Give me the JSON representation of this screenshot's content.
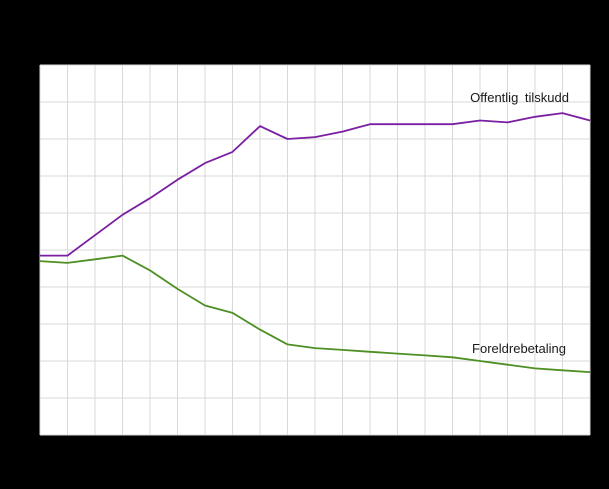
{
  "labels": {
    "series1": "Offentlig tilskudd",
    "series2": "Foreldrebetaling"
  },
  "colors": {
    "background": "#000000",
    "plot_background": "#ffffff",
    "gridline": "#d9d9d9",
    "series1": "#7a1fa2",
    "series2": "#4e8f23"
  },
  "chart_data": {
    "type": "line",
    "x": [
      0,
      1,
      2,
      3,
      4,
      5,
      6,
      7,
      8,
      9,
      10,
      11,
      12,
      13,
      14,
      15,
      16,
      17,
      18,
      19,
      20
    ],
    "series": [
      {
        "name": "Offentlig tilskudd",
        "color": "#7a1fa2",
        "values": [
          48.5,
          48.5,
          54,
          59.5,
          64,
          69,
          73.5,
          76.5,
          83.5,
          80,
          80.5,
          82,
          84,
          84,
          84,
          84,
          85,
          84.5,
          86,
          87,
          85
        ]
      },
      {
        "name": "Foreldrebetaling",
        "color": "#4e8f23",
        "values": [
          47,
          46.5,
          47.5,
          48.5,
          44.5,
          39.5,
          35,
          33,
          28.5,
          24.5,
          23.5,
          23,
          22.5,
          22,
          21.5,
          21,
          20,
          19,
          18,
          17.5,
          17
        ]
      }
    ],
    "ylim": [
      0,
      100
    ],
    "xlim": [
      0,
      20
    ],
    "grid": true,
    "x_gridline_count": 21,
    "y_gridline_count": 11,
    "title": "",
    "xlabel": "",
    "ylabel": "",
    "annotations": [
      "Offentlig tilskudd",
      "Foreldrebetaling"
    ],
    "legend_position": "inline-annotations"
  }
}
